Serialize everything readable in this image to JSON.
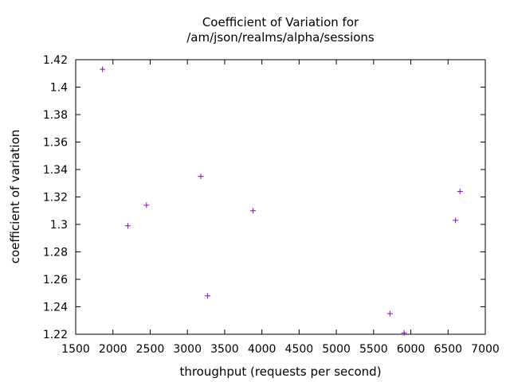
{
  "chart_data": {
    "type": "scatter",
    "title_lines": [
      "Coefficient of Variation for",
      "/am/json/realms/alpha/sessions"
    ],
    "xlabel": "throughput (requests per second)",
    "ylabel": "coefficient of variation",
    "xlim": [
      1500,
      7000
    ],
    "ylim": [
      1.22,
      1.42
    ],
    "x_ticks": [
      "1500",
      "2000",
      "2500",
      "3000",
      "3500",
      "4000",
      "4500",
      "5000",
      "5500",
      "6000",
      "6500",
      "7000"
    ],
    "y_ticks": [
      "1.22",
      "1.24",
      "1.26",
      "1.28",
      "1.3",
      "1.32",
      "1.34",
      "1.36",
      "1.38",
      "1.4",
      "1.42"
    ],
    "grid": false,
    "legend": "none",
    "marker": "+",
    "marker_color": "#9400d3",
    "points": [
      {
        "x": 1860,
        "y": 1.413
      },
      {
        "x": 2200,
        "y": 1.299
      },
      {
        "x": 2450,
        "y": 1.314
      },
      {
        "x": 3180,
        "y": 1.335
      },
      {
        "x": 3270,
        "y": 1.248
      },
      {
        "x": 3880,
        "y": 1.31
      },
      {
        "x": 5720,
        "y": 1.235
      },
      {
        "x": 5910,
        "y": 1.221
      },
      {
        "x": 6600,
        "y": 1.303
      },
      {
        "x": 6660,
        "y": 1.324
      }
    ]
  }
}
